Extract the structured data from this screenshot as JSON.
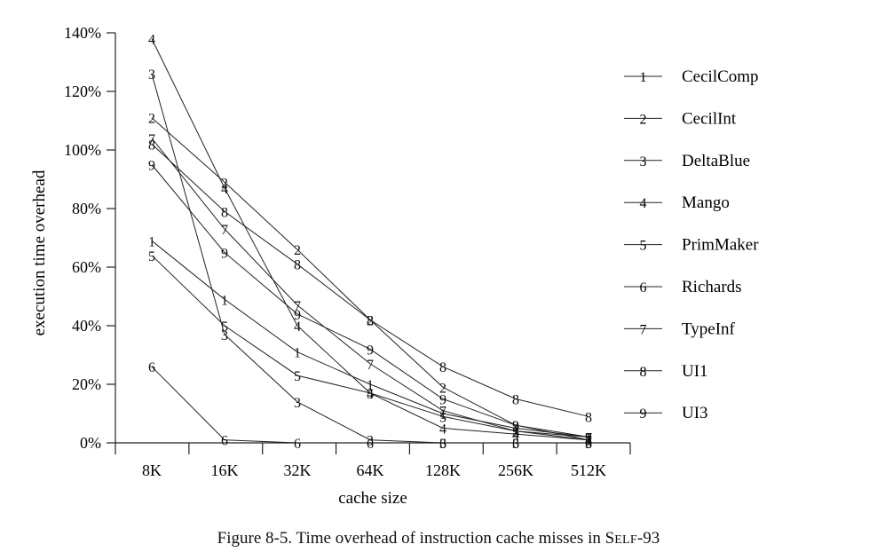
{
  "chart_data": {
    "type": "line",
    "xlabel": "cache size",
    "ylabel": "execution time overhead",
    "categories": [
      "8K",
      "16K",
      "32K",
      "64K",
      "128K",
      "256K",
      "512K"
    ],
    "y_ticks": [
      "0%",
      "20%",
      "40%",
      "60%",
      "80%",
      "100%",
      "120%",
      "140%"
    ],
    "ylim": [
      0,
      140
    ],
    "grid": false,
    "legend_position": "right",
    "series": [
      {
        "name": "CecilComp",
        "marker": "1",
        "values": [
          69,
          49,
          31,
          20,
          10,
          5,
          2
        ]
      },
      {
        "name": "CecilInt",
        "marker": "2",
        "values": [
          111,
          89,
          66,
          42,
          19,
          6,
          1
        ]
      },
      {
        "name": "DeltaBlue",
        "marker": "3",
        "values": [
          126,
          37,
          14,
          1,
          0,
          0,
          0
        ]
      },
      {
        "name": "Mango",
        "marker": "4",
        "values": [
          138,
          87,
          40,
          17,
          5,
          3,
          1
        ]
      },
      {
        "name": "PrimMaker",
        "marker": "5",
        "values": [
          64,
          40,
          23,
          17,
          9,
          4,
          1
        ]
      },
      {
        "name": "Richards",
        "marker": "6",
        "values": [
          26,
          1,
          0,
          0,
          0,
          0,
          0
        ]
      },
      {
        "name": "TypeInf",
        "marker": "7",
        "values": [
          104,
          73,
          47,
          27,
          11,
          4,
          2
        ]
      },
      {
        "name": "UI1",
        "marker": "8",
        "values": [
          102,
          79,
          61,
          42,
          26,
          15,
          9
        ]
      },
      {
        "name": "UI3",
        "marker": "9",
        "values": [
          95,
          65,
          44,
          32,
          15,
          6,
          2
        ]
      }
    ]
  },
  "caption": {
    "prefix": "Figure 8-5.  Time overhead of instruction cache misses in ",
    "self_word": "Self",
    "suffix": "-93"
  }
}
